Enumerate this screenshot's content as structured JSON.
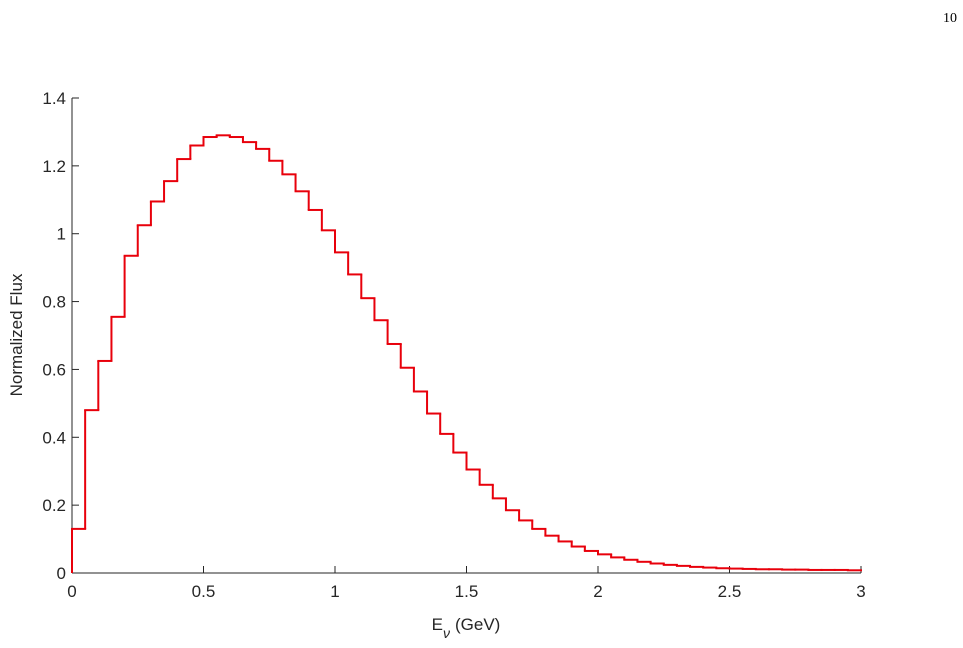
{
  "page_number": "10",
  "chart_data": {
    "type": "histogram",
    "xlabel": [
      "E",
      "ν",
      "(GeV)"
    ],
    "ylabel": "Normalized Flux",
    "color": "#e8000b",
    "bins": [
      0,
      0.05,
      0.1,
      0.15,
      0.2,
      0.25,
      0.3,
      0.35,
      0.4,
      0.45,
      0.5,
      0.55,
      0.6,
      0.65,
      0.7,
      0.75,
      0.8,
      0.85,
      0.9,
      0.95,
      1,
      1.05,
      1.1,
      1.15,
      1.2,
      1.25,
      1.3,
      1.35,
      1.4,
      1.45,
      1.5,
      1.55,
      1.6,
      1.65,
      1.7,
      1.75,
      1.8,
      1.85,
      1.9,
      1.95,
      2,
      2.05,
      2.1,
      2.15,
      2.2,
      2.25,
      2.3,
      2.35,
      2.4,
      2.45,
      2.5,
      2.55,
      2.6,
      2.65,
      2.7,
      2.75,
      2.8,
      2.85,
      2.9,
      2.95,
      3
    ],
    "values": [
      0.13,
      0.48,
      0.625,
      0.755,
      0.935,
      1.025,
      1.095,
      1.155,
      1.22,
      1.26,
      1.285,
      1.29,
      1.285,
      1.27,
      1.25,
      1.215,
      1.175,
      1.125,
      1.07,
      1.01,
      0.945,
      0.88,
      0.81,
      0.745,
      0.675,
      0.605,
      0.535,
      0.47,
      0.41,
      0.355,
      0.305,
      0.26,
      0.22,
      0.185,
      0.155,
      0.13,
      0.11,
      0.093,
      0.078,
      0.065,
      0.055,
      0.046,
      0.039,
      0.033,
      0.028,
      0.024,
      0.021,
      0.018,
      0.016,
      0.014,
      0.013,
      0.012,
      0.011,
      0.011,
      0.01,
      0.01,
      0.009,
      0.009,
      0.009,
      0.008
    ],
    "xlim": [
      0,
      3
    ],
    "xticks": [
      0,
      0.5,
      1,
      1.5,
      2,
      2.5,
      3
    ],
    "ylim": [
      0,
      1.4
    ],
    "yticks": [
      0,
      0.2,
      0.4,
      0.6,
      0.8,
      1,
      1.2,
      1.4
    ]
  }
}
